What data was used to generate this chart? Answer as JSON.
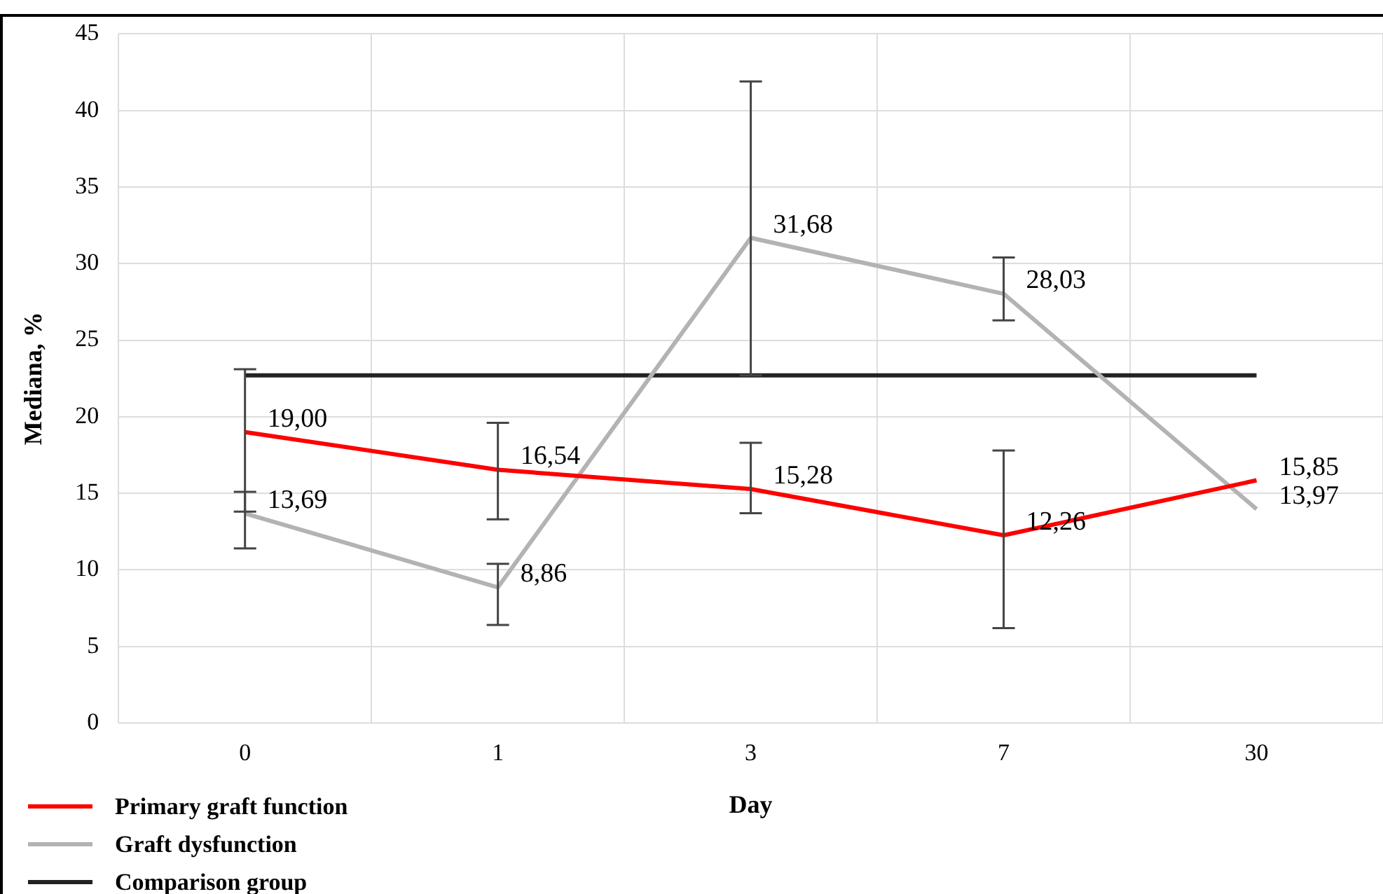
{
  "chart_data": {
    "type": "line",
    "xlabel": "Day",
    "ylabel": "Mediana, %",
    "categories": [
      "0",
      "1",
      "3",
      "7",
      "30"
    ],
    "ylim": [
      0,
      45
    ],
    "yticks": [
      0,
      5,
      10,
      15,
      20,
      25,
      30,
      35,
      40,
      45
    ],
    "grid": true,
    "legend": "bottom left",
    "marker": "none",
    "line_style": "solid",
    "series": [
      {
        "name": "Primary graft function",
        "color": "#ff0000",
        "values": [
          19.0,
          16.54,
          15.28,
          12.26,
          15.85
        ],
        "value_labels": [
          "19,00",
          "16,54",
          "15,28",
          "12,26",
          "15,85"
        ],
        "errors": [
          [
            13.8,
            23.1
          ],
          [
            13.3,
            19.6
          ],
          [
            13.7,
            18.3
          ],
          [
            6.2,
            17.8
          ],
          null
        ]
      },
      {
        "name": "Graft dysfunction",
        "color": "#b3b3b3",
        "values": [
          13.69,
          8.86,
          31.68,
          28.03,
          13.97
        ],
        "value_labels": [
          "13,69",
          "8,86",
          "31,68",
          "28,03",
          "13,97"
        ],
        "errors": [
          [
            11.4,
            15.1
          ],
          [
            6.4,
            10.4
          ],
          [
            22.7,
            41.9
          ],
          [
            26.3,
            30.4
          ],
          null
        ]
      },
      {
        "name": "Comparison group",
        "color": "#222222",
        "values": [
          22.7,
          22.7,
          22.7,
          22.7,
          22.7
        ]
      }
    ]
  }
}
